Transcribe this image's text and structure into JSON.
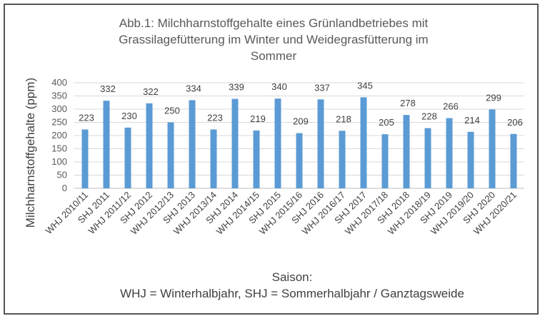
{
  "chart_data": {
    "type": "bar",
    "title_lines": [
      "Abb.1: Milchharnstoffgehalte eines Grünlandbetriebes mit",
      "Grassilagefütterung im Winter und Weidegrasfütterung im",
      "Sommer"
    ],
    "ylabel": "Milchharnstoffgehalte (ppm)",
    "xlabel_lines": [
      "Saison:",
      "WHJ = Winterhalbjahr, SHJ = Sommerhalbjahr / Ganztagsweide"
    ],
    "ylim": [
      0,
      400
    ],
    "yticks": [
      0,
      50,
      100,
      150,
      200,
      250,
      300,
      350,
      400
    ],
    "grid": true,
    "color": "#5b9bd5",
    "categories": [
      "WHJ 2010/11",
      "SHJ 2011",
      "WHJ 2011/12",
      "SHJ 2012",
      "WHJ 2012/13",
      "SHJ 2013",
      "WHJ 2013/14",
      "SHJ 2014",
      "WHJ 2014/15",
      "SHJ 2015",
      "WHJ 2015/16",
      "SHJ 2016",
      "WHJ 2016/17",
      "SHJ 2017",
      "WHJ 2017/18",
      "SHJ 2018",
      "WHJ 2018/19",
      "SHJ 2019",
      "WHJ 2019/20",
      "SHJ 2020",
      "WHJ 2020/21"
    ],
    "values": [
      223,
      332,
      230,
      322,
      250,
      334,
      223,
      339,
      219,
      340,
      209,
      337,
      218,
      345,
      205,
      278,
      228,
      266,
      214,
      299,
      206
    ]
  }
}
